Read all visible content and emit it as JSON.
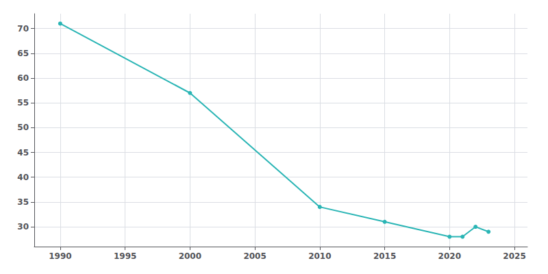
{
  "chart_data": {
    "type": "line",
    "x": [
      1990,
      2000,
      2010,
      2015,
      2020,
      2021,
      2022,
      2023
    ],
    "values": [
      71,
      57,
      34,
      31,
      28,
      28,
      30,
      29
    ],
    "color": "#2ab5b5",
    "marker": "circle",
    "xlim": [
      1988,
      2026
    ],
    "ylim": [
      26,
      73
    ],
    "xticks": [
      1990,
      1995,
      2000,
      2005,
      2010,
      2015,
      2020,
      2025
    ],
    "yticks": [
      30,
      35,
      40,
      45,
      50,
      55,
      60,
      65,
      70
    ],
    "grid": true
  }
}
